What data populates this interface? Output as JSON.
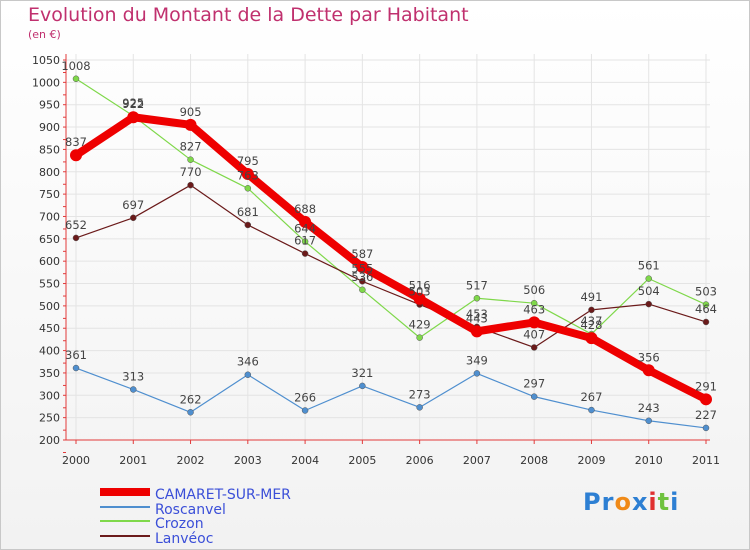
{
  "chart_data": {
    "type": "line",
    "title": "Evolution du Montant de la Dette par Habitant",
    "subtitle": "(en €)",
    "xlabel": "",
    "ylabel": "",
    "categories": [
      "2000",
      "2001",
      "2002",
      "2003",
      "2004",
      "2005",
      "2006",
      "2007",
      "2008",
      "2009",
      "2010",
      "2011"
    ],
    "ylim": [
      200,
      1050
    ],
    "yticks": [
      200,
      250,
      300,
      350,
      400,
      450,
      500,
      550,
      600,
      650,
      700,
      750,
      800,
      850,
      900,
      950,
      1000,
      1050
    ],
    "grid": true,
    "legend_position": "bottom-left",
    "series": [
      {
        "name": "CAMARET-SUR-MER",
        "color": "#ee0000",
        "values": [
          837,
          922,
          905,
          795,
          688,
          587,
          516,
          443,
          463,
          428,
          356,
          291
        ]
      },
      {
        "name": "Roscanvel",
        "color": "#4f8fcf",
        "values": [
          361,
          313,
          262,
          346,
          266,
          321,
          273,
          349,
          297,
          267,
          243,
          227
        ]
      },
      {
        "name": "Crozon",
        "color": "#7fd84a",
        "values": [
          1008,
          925,
          827,
          763,
          644,
          536,
          429,
          517,
          506,
          437,
          561,
          503
        ]
      },
      {
        "name": "Lanvéoc",
        "color": "#6b1a1a",
        "values": [
          652,
          697,
          770,
          681,
          617,
          555,
          503,
          453,
          407,
          491,
          504,
          464
        ]
      }
    ]
  },
  "logo": {
    "text": "Proxiti",
    "letters": [
      "P",
      "r",
      "o",
      "x",
      "i",
      "t",
      "i"
    ],
    "colors": [
      "#2d7fd3",
      "#2d7fd3",
      "#f08a18",
      "#2d7fd3",
      "#e03030",
      "#6fc23f",
      "#2d7fd3"
    ]
  }
}
